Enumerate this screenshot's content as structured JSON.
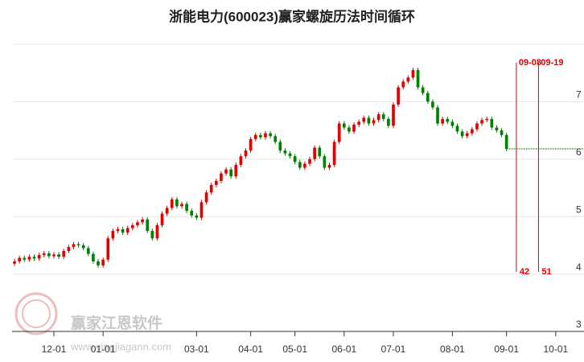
{
  "chart_data": {
    "type": "candlestick",
    "title": "浙能电力(600023)赢家螺旋历法时间循环",
    "watermark": {
      "name": "赢家江恩软件",
      "url": "www.yingjiagann.com"
    },
    "up_color": "#e00000",
    "down_color": "#008000",
    "x": [
      0,
      1,
      2,
      3,
      4,
      5,
      6,
      7,
      8,
      9,
      10,
      11,
      12,
      13,
      14,
      15,
      16,
      17,
      18,
      19,
      20,
      21,
      22,
      23,
      24,
      25,
      26,
      27,
      28,
      29,
      30,
      31,
      32,
      33,
      34,
      35,
      36,
      37,
      38,
      39,
      40,
      41,
      42,
      43,
      44,
      45,
      46,
      47,
      48,
      49,
      50,
      51,
      52,
      53,
      54,
      55,
      56,
      57,
      58,
      59,
      60,
      61,
      62,
      63,
      64,
      65,
      66,
      67,
      68,
      69,
      70,
      71,
      72,
      73,
      74,
      75,
      76,
      77,
      78,
      79,
      80,
      81,
      82,
      83,
      84,
      85,
      86,
      87,
      88,
      89,
      90,
      91,
      92,
      93,
      94,
      95,
      96,
      97,
      98,
      99,
      100
    ],
    "open": [
      4.18,
      4.22,
      4.28,
      4.25,
      4.3,
      4.27,
      4.33,
      4.36,
      4.31,
      4.34,
      4.3,
      4.4,
      4.47,
      4.52,
      4.5,
      4.45,
      4.35,
      4.22,
      4.15,
      4.25,
      4.62,
      4.75,
      4.78,
      4.72,
      4.8,
      4.85,
      4.9,
      4.95,
      4.75,
      4.62,
      4.85,
      5.05,
      5.15,
      5.3,
      5.18,
      5.22,
      5.1,
      5.02,
      4.98,
      5.25,
      5.42,
      5.55,
      5.62,
      5.75,
      5.82,
      5.7,
      5.9,
      6.05,
      6.15,
      6.35,
      6.42,
      6.38,
      6.45,
      6.4,
      6.3,
      6.15,
      6.1,
      6.05,
      5.95,
      5.85,
      5.92,
      6.0,
      6.2,
      6.05,
      5.85,
      5.9,
      6.3,
      6.62,
      6.55,
      6.48,
      6.6,
      6.65,
      6.72,
      6.62,
      6.68,
      6.78,
      6.7,
      6.58,
      6.95,
      7.25,
      7.35,
      7.42,
      7.55,
      7.25,
      7.15,
      7.0,
      6.9,
      6.62,
      6.7,
      6.65,
      6.58,
      6.48,
      6.4,
      6.45,
      6.52,
      6.62,
      6.68,
      6.7,
      6.55,
      6.5,
      6.42
    ],
    "high": [
      4.26,
      4.32,
      4.32,
      4.34,
      4.34,
      4.37,
      4.4,
      4.4,
      4.38,
      4.38,
      4.44,
      4.51,
      4.56,
      4.56,
      4.54,
      4.49,
      4.39,
      4.26,
      4.29,
      4.66,
      4.79,
      4.82,
      4.82,
      4.84,
      4.89,
      4.94,
      4.99,
      4.99,
      4.79,
      4.89,
      5.09,
      5.19,
      5.34,
      5.34,
      5.26,
      5.26,
      5.14,
      5.06,
      5.29,
      5.46,
      5.59,
      5.66,
      5.79,
      5.86,
      5.86,
      5.94,
      6.09,
      6.19,
      6.39,
      6.46,
      6.46,
      6.49,
      6.49,
      6.44,
      6.34,
      6.19,
      6.14,
      6.09,
      5.99,
      5.96,
      6.04,
      6.24,
      6.24,
      6.09,
      5.94,
      6.34,
      6.66,
      6.66,
      6.59,
      6.64,
      6.69,
      6.76,
      6.76,
      6.72,
      6.82,
      6.82,
      6.74,
      6.99,
      7.29,
      7.39,
      7.46,
      7.59,
      7.59,
      7.29,
      7.19,
      7.04,
      6.94,
      6.74,
      6.74,
      6.69,
      6.62,
      6.52,
      6.49,
      6.56,
      6.66,
      6.72,
      6.74,
      6.74,
      6.59,
      6.54,
      6.46
    ],
    "low": [
      4.14,
      4.18,
      4.21,
      4.21,
      4.23,
      4.23,
      4.29,
      4.27,
      4.27,
      4.26,
      4.26,
      4.36,
      4.43,
      4.46,
      4.41,
      4.31,
      4.18,
      4.11,
      4.11,
      4.21,
      4.58,
      4.71,
      4.68,
      4.68,
      4.76,
      4.81,
      4.86,
      4.71,
      4.58,
      4.58,
      4.81,
      5.01,
      5.11,
      5.14,
      5.14,
      5.06,
      4.98,
      4.94,
      4.94,
      5.21,
      5.38,
      5.51,
      5.58,
      5.71,
      5.66,
      5.66,
      5.86,
      6.01,
      6.11,
      6.31,
      6.34,
      6.34,
      6.36,
      6.26,
      6.11,
      6.06,
      6.01,
      5.91,
      5.81,
      5.81,
      5.88,
      5.96,
      6.01,
      5.81,
      5.81,
      5.86,
      6.26,
      6.51,
      6.44,
      6.44,
      6.56,
      6.61,
      6.58,
      6.58,
      6.64,
      6.66,
      6.54,
      6.54,
      6.91,
      7.21,
      7.31,
      7.38,
      7.21,
      7.11,
      6.96,
      6.86,
      6.58,
      6.58,
      6.61,
      6.54,
      6.44,
      6.36,
      6.36,
      6.41,
      6.48,
      6.58,
      6.64,
      6.51,
      6.46,
      6.38,
      6.14
    ],
    "close": [
      4.22,
      4.28,
      4.25,
      4.3,
      4.27,
      4.33,
      4.36,
      4.31,
      4.34,
      4.3,
      4.4,
      4.47,
      4.52,
      4.5,
      4.45,
      4.35,
      4.22,
      4.15,
      4.25,
      4.62,
      4.75,
      4.78,
      4.72,
      4.8,
      4.85,
      4.9,
      4.95,
      4.75,
      4.62,
      4.85,
      5.05,
      5.15,
      5.3,
      5.18,
      5.22,
      5.1,
      5.02,
      4.98,
      5.25,
      5.42,
      5.55,
      5.62,
      5.75,
      5.82,
      5.7,
      5.9,
      6.05,
      6.15,
      6.35,
      6.42,
      6.38,
      6.45,
      6.4,
      6.3,
      6.15,
      6.1,
      6.05,
      5.95,
      5.85,
      5.92,
      6.0,
      6.2,
      6.05,
      5.85,
      5.9,
      6.3,
      6.62,
      6.55,
      6.48,
      6.6,
      6.65,
      6.72,
      6.62,
      6.68,
      6.78,
      6.7,
      6.58,
      6.95,
      7.25,
      7.35,
      7.42,
      7.55,
      7.25,
      7.15,
      7.0,
      6.9,
      6.62,
      6.7,
      6.65,
      6.58,
      6.48,
      6.4,
      6.45,
      6.52,
      6.62,
      6.68,
      6.7,
      6.55,
      6.5,
      6.42,
      6.18
    ],
    "xlim": [
      -0.5,
      111.5
    ],
    "xticks": [
      {
        "value": 8,
        "label": "12-01"
      },
      {
        "value": 18,
        "label": "01-01"
      },
      {
        "value": 37,
        "label": "03-01"
      },
      {
        "value": 48,
        "label": "04-01"
      },
      {
        "value": 57,
        "label": "05-01"
      },
      {
        "value": 67,
        "label": "06-01"
      },
      {
        "value": 77,
        "label": "07-01"
      },
      {
        "value": 89,
        "label": "08-01"
      },
      {
        "value": 100,
        "label": "09-01"
      },
      {
        "value": 110,
        "label": "10-01"
      }
    ],
    "ylim": [
      3,
      8
    ],
    "yticks": [
      3,
      4,
      5,
      6,
      7
    ],
    "grid": true,
    "cycle_lines": [
      {
        "x": 102,
        "date": "09-08",
        "count": 42
      },
      {
        "x": 106.5,
        "date": "09-19",
        "count": 51
      }
    ],
    "price_line": {
      "value": 6.18,
      "color": "#008000"
    }
  }
}
